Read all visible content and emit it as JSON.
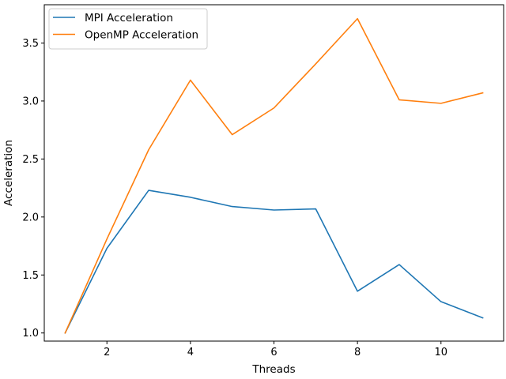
{
  "chart_data": {
    "type": "line",
    "title": "",
    "xlabel": "Threads",
    "ylabel": "Acceleration",
    "x": [
      1,
      2,
      3,
      4,
      5,
      6,
      7,
      8,
      9,
      10,
      11
    ],
    "xlim": [
      0.5,
      11.5
    ],
    "ylim": [
      0.93,
      3.83
    ],
    "xticks": [
      2,
      4,
      6,
      8,
      10
    ],
    "yticks": [
      1.0,
      1.5,
      2.0,
      2.5,
      3.0,
      3.5
    ],
    "xtick_labels": [
      "2",
      "4",
      "6",
      "8",
      "10"
    ],
    "ytick_labels": [
      "1.0",
      "1.5",
      "2.0",
      "2.5",
      "3.0",
      "3.5"
    ],
    "grid": false,
    "legend_position": "top-left",
    "series": [
      {
        "name": "MPI Acceleration",
        "color": "#1f77b4",
        "values": [
          1.0,
          1.73,
          2.23,
          2.17,
          2.09,
          2.06,
          2.07,
          1.36,
          1.59,
          1.27,
          1.13
        ]
      },
      {
        "name": "OpenMP Acceleration",
        "color": "#ff7f0e",
        "values": [
          1.0,
          1.81,
          2.58,
          3.18,
          2.71,
          2.94,
          3.32,
          3.71,
          3.01,
          2.98,
          3.07
        ]
      }
    ]
  }
}
